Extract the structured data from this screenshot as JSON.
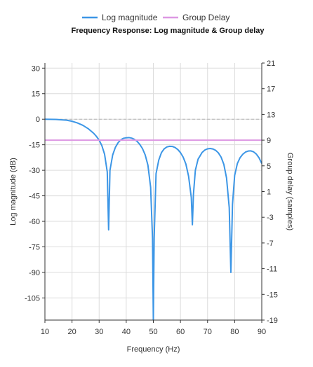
{
  "chart_data": {
    "type": "line",
    "title": "Frequency Response: Log magnitude  &  Group delay",
    "legend": {
      "position": "top-center",
      "entries": [
        {
          "name": "Log magnitude",
          "color": "#3c96e6"
        },
        {
          "name": "Group Delay",
          "color": "#dd98e3"
        }
      ]
    },
    "xlabel": "Frequency (Hz)",
    "ylabel_left": "Log magnitude (dB)",
    "ylabel_right": "Group delay (samples)",
    "xlim": [
      10,
      90
    ],
    "ylim_left": [
      -118,
      33
    ],
    "ylim_right": [
      -19,
      21
    ],
    "xticks": [
      10,
      20,
      30,
      40,
      50,
      60,
      70,
      80,
      90
    ],
    "yticks_left": [
      30,
      15,
      0,
      -15,
      -30,
      -45,
      -60,
      -75,
      -90,
      -105
    ],
    "yticks_right": [
      21,
      17,
      13,
      9,
      5,
      1,
      -3,
      -7,
      -11,
      -15,
      -19
    ],
    "grid": true,
    "reference_line": {
      "axis": "left",
      "y": 0,
      "style": "dashed"
    },
    "series": [
      {
        "name": "Log magnitude",
        "axis": "left",
        "color": "#3c96e6",
        "x": [
          10,
          14,
          18,
          20,
          22,
          24,
          26,
          28,
          29,
          30,
          31,
          32,
          33,
          33.5,
          34,
          35,
          36,
          37,
          38,
          39,
          40,
          41,
          42,
          43,
          44,
          45,
          46,
          47,
          48,
          49,
          49.7,
          50,
          50.3,
          51,
          52,
          53,
          54,
          55,
          56,
          57,
          58,
          59,
          60,
          61,
          62,
          63,
          64,
          64.4,
          64.8,
          65.5,
          66.5,
          68,
          69,
          70,
          71,
          72,
          73,
          74,
          75,
          76,
          77,
          78,
          78.6,
          79.2,
          80,
          81,
          82,
          83,
          84,
          85,
          86,
          87,
          88,
          89,
          90
        ],
        "values": [
          0,
          -0.1,
          -0.6,
          -1.2,
          -2.2,
          -3.6,
          -5.6,
          -8.3,
          -10.1,
          -12.3,
          -15.5,
          -20.5,
          -31,
          -65,
          -30,
          -21,
          -16.5,
          -13.8,
          -12.1,
          -11.2,
          -10.9,
          -10.8,
          -11.1,
          -11.8,
          -13,
          -14.8,
          -17.3,
          -21,
          -27,
          -40,
          -70,
          -118,
          -70,
          -32,
          -24,
          -19.6,
          -17.4,
          -16.3,
          -15.9,
          -16,
          -16.6,
          -17.8,
          -19.6,
          -22.3,
          -26.3,
          -33.5,
          -46,
          -62,
          -44,
          -30,
          -23.5,
          -19.5,
          -18.1,
          -17.4,
          -17.2,
          -17.5,
          -18.3,
          -19.8,
          -22.3,
          -26.5,
          -34.5,
          -52,
          -90,
          -50,
          -33,
          -26,
          -22.6,
          -20.6,
          -19.3,
          -18.7,
          -18.6,
          -19.2,
          -20.5,
          -22.7,
          -26
        ]
      },
      {
        "name": "Group Delay",
        "axis": "right",
        "color": "#dd98e3",
        "x": [
          10,
          90
        ],
        "values": [
          9,
          9
        ]
      }
    ]
  }
}
